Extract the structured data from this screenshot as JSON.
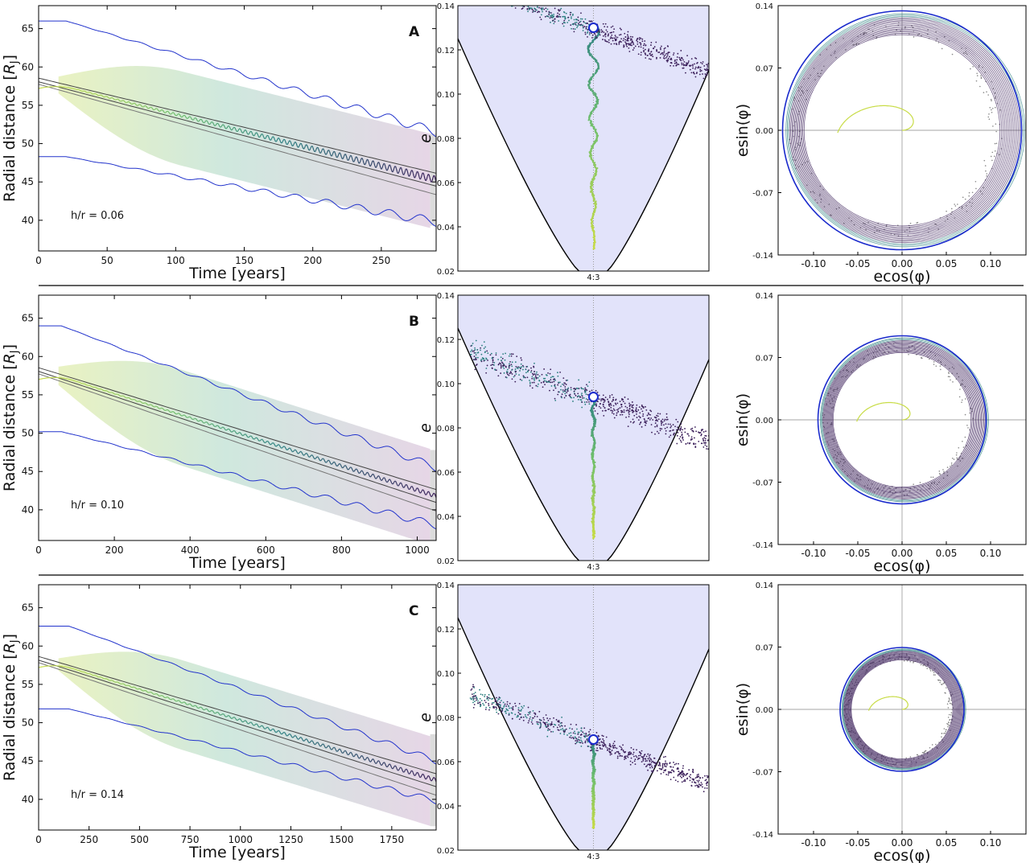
{
  "colors": {
    "boundary": "#2233cc",
    "fill_start": "#e9f2c2",
    "fill_mid": "#cfe8de",
    "fill_end": "#e6d6e6",
    "planet_ref": "#222222",
    "rz_fill": "#e2e3fa",
    "resonance_line": "#999999",
    "scatter_dark": "#3b1f5a",
    "scatter_teal": "#2a7f7f",
    "scatter_green": "#7ac96a",
    "scatter_yellow": "#c8dc46",
    "marker_edge": "#1a2acc",
    "scatter_gray": "#888888"
  },
  "chart_data": [
    {
      "panel": "A",
      "type": "line",
      "title": "A",
      "annotation": "h/r = 0.06",
      "xlabel": "Time [years]",
      "ylabel": "Radial distance [R_J]",
      "xlim": [
        0,
        290
      ],
      "ylim": [
        36,
        68
      ],
      "xticks": [
        0,
        50,
        100,
        150,
        200,
        250
      ],
      "yticks": [
        40,
        45,
        50,
        55,
        60,
        65
      ],
      "upper_boundary": {
        "start": 66,
        "flat_until": 20,
        "end": 51.5,
        "osc_amp": 0.6
      },
      "lower_boundary": {
        "start": 48.3,
        "flat_until": 20,
        "end": 39.8,
        "osc_amp": 0.6
      },
      "planet_track": {
        "start": 58.3,
        "end": 45.3
      },
      "band_width": 10.0,
      "fill_envelope": [
        55.5,
        61,
        58
      ],
      "yellow_start": 57.2,
      "osc_amp_track": 0.5
    },
    {
      "panel": "A",
      "type": "scatter",
      "xlabel": "",
      "ylabel": "e",
      "ylim": [
        0.02,
        0.14
      ],
      "yticks": [
        0.02,
        0.04,
        0.06,
        0.08,
        0.1,
        0.12,
        0.14
      ],
      "resonance_label": "4:3",
      "marker_e": 0.13,
      "cloud_top": 0.13,
      "cloud_spread": 0.006,
      "zigzag_amp": 0.01
    },
    {
      "panel": "A",
      "type": "scatter",
      "xlabel": "ecos(φ)",
      "ylabel": "esin(φ)",
      "xlim": [
        -0.14,
        0.14
      ],
      "ylim": [
        -0.14,
        0.14
      ],
      "xticks": [
        -0.1,
        -0.05,
        0.0,
        0.05,
        0.1
      ],
      "yticks": [
        -0.14,
        -0.07,
        0.0,
        0.07,
        0.14
      ],
      "circle_radius": 0.135
    },
    {
      "panel": "B",
      "type": "line",
      "title": "B",
      "annotation": "h/r = 0.10",
      "xlabel": "Time [years]",
      "ylabel": "Radial distance [R_J]",
      "xlim": [
        0,
        1050
      ],
      "ylim": [
        36,
        68
      ],
      "xticks": [
        0,
        200,
        400,
        600,
        800,
        1000
      ],
      "yticks": [
        40,
        45,
        50,
        55,
        60,
        65
      ],
      "upper_boundary": {
        "start": 64,
        "flat_until": 60,
        "end": 45.5,
        "osc_amp": 0.5
      },
      "lower_boundary": {
        "start": 50.2,
        "flat_until": 60,
        "end": 38.0,
        "osc_amp": 0.5
      },
      "planet_track": {
        "start": 58.3,
        "end": 41.8
      },
      "band_width": 10.0,
      "fill_envelope": [
        54.0,
        60.0,
        48.0
      ],
      "yellow_start": 57.0,
      "osc_amp_track": 0.3
    },
    {
      "panel": "B",
      "type": "scatter",
      "xlabel": "",
      "ylabel": "e",
      "ylim": [
        0.02,
        0.14
      ],
      "yticks": [
        0.02,
        0.04,
        0.06,
        0.08,
        0.1,
        0.12,
        0.14
      ],
      "resonance_label": "4:3",
      "marker_e": 0.094,
      "cloud_top": 0.094,
      "cloud_spread": 0.008,
      "zigzag_amp": 0.003
    },
    {
      "panel": "B",
      "type": "scatter",
      "xlabel": "ecos(φ)",
      "ylabel": "esin(φ)",
      "xlim": [
        -0.14,
        0.14
      ],
      "ylim": [
        -0.14,
        0.14
      ],
      "xticks": [
        -0.1,
        -0.05,
        0.0,
        0.05,
        0.1
      ],
      "yticks": [
        -0.14,
        -0.07,
        0.0,
        0.07,
        0.14
      ],
      "circle_radius": 0.095
    },
    {
      "panel": "C",
      "type": "line",
      "title": "C",
      "annotation": "h/r = 0.14",
      "xlabel": "Time [years]",
      "ylabel": "Radial distance [R_J]",
      "xlim": [
        0,
        1970
      ],
      "ylim": [
        36,
        68
      ],
      "xticks": [
        0,
        250,
        500,
        750,
        1000,
        1250,
        1500,
        1750
      ],
      "yticks": [
        40,
        45,
        50,
        55,
        60,
        65
      ],
      "upper_boundary": {
        "start": 62.6,
        "flat_until": 150,
        "end": 45.0,
        "osc_amp": 0.4
      },
      "lower_boundary": {
        "start": 51.8,
        "flat_until": 150,
        "end": 39.8,
        "osc_amp": 0.4
      },
      "planet_track": {
        "start": 58.4,
        "end": 42.5
      },
      "band_width": 10.0,
      "fill_envelope": [
        55.0,
        59.0,
        48.0
      ],
      "yellow_start": 57.2,
      "osc_amp_track": 0.3
    },
    {
      "panel": "C",
      "type": "scatter",
      "xlabel": "",
      "ylabel": "e",
      "ylim": [
        0.02,
        0.14
      ],
      "yticks": [
        0.02,
        0.04,
        0.06,
        0.08,
        0.1,
        0.12,
        0.14
      ],
      "resonance_label": "4:3",
      "marker_e": 0.07,
      "cloud_top": 0.07,
      "cloud_spread": 0.006,
      "zigzag_amp": 0.0015
    },
    {
      "panel": "C",
      "type": "scatter",
      "xlabel": "ecos(φ)",
      "ylabel": "esin(φ)",
      "xlim": [
        -0.14,
        0.14
      ],
      "ylim": [
        -0.14,
        0.14
      ],
      "xticks": [
        -0.1,
        -0.05,
        0.0,
        0.05,
        0.1
      ],
      "yticks": [
        -0.14,
        -0.07,
        0.0,
        0.07,
        0.14
      ],
      "circle_radius": 0.07
    }
  ]
}
